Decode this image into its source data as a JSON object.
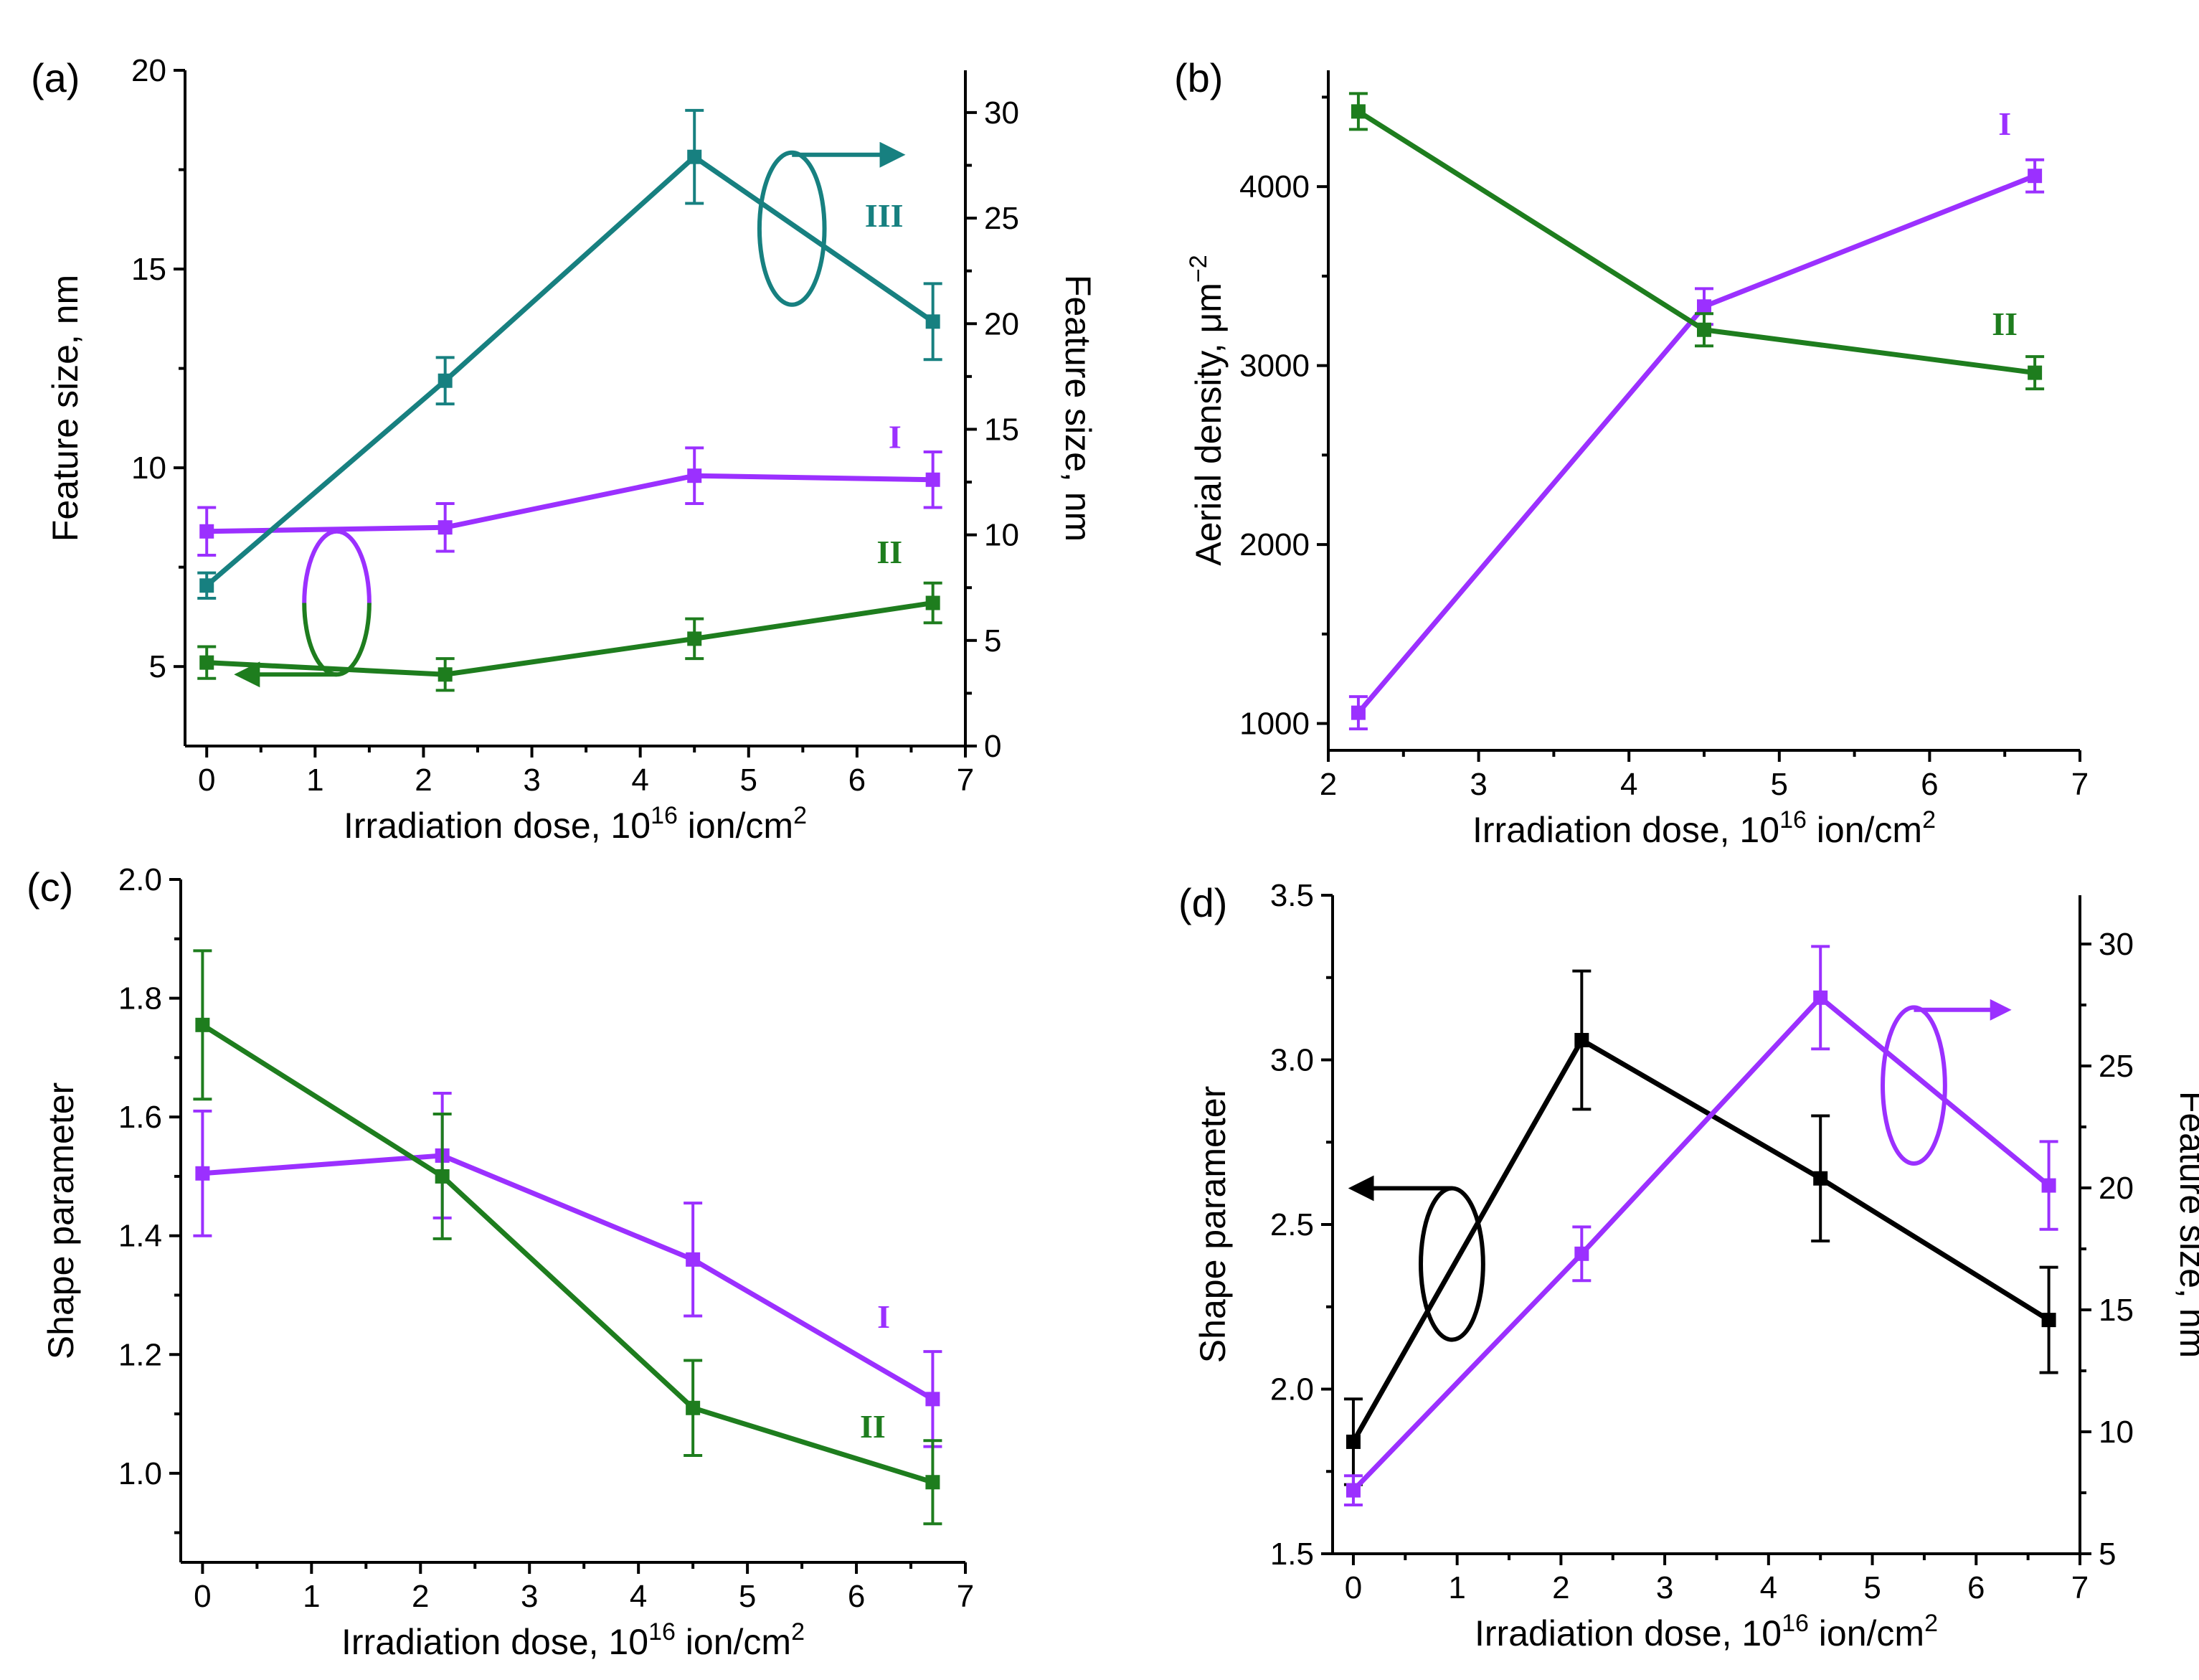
{
  "colors": {
    "purple": "#9b30ff",
    "green": "#1e7d1e",
    "teal": "#178080",
    "black": "#000000"
  },
  "chart_data": [
    {
      "id": "a",
      "type": "line",
      "panel_label": "(a)",
      "xlabel": "Irradiation dose, 10",
      "xlabel_sup": "16",
      "xlabel_tail": " ion/cm",
      "xlabel_tail_sup": "2",
      "ylabel": "Feature size, nm",
      "ylabel_right": "Feature size, nm",
      "xlim": [
        -0.2,
        7
      ],
      "ylim": [
        3,
        20
      ],
      "ylim_right": [
        0,
        32
      ],
      "xticks": [
        0,
        1,
        2,
        3,
        4,
        5,
        6,
        7
      ],
      "yticks": [
        5,
        10,
        15,
        20
      ],
      "yticks_right": [
        0,
        5,
        10,
        15,
        20,
        25,
        30
      ],
      "series": [
        {
          "name": "I",
          "color": "purple",
          "axis": "left",
          "x": [
            0,
            2.2,
            4.5,
            6.7
          ],
          "y": [
            8.4,
            8.5,
            9.8,
            9.7
          ],
          "err": [
            0.6,
            0.6,
            0.7,
            0.7
          ],
          "label_at": [
            6.35,
            10.5
          ]
        },
        {
          "name": "II",
          "color": "green",
          "axis": "left",
          "x": [
            0,
            2.2,
            4.5,
            6.7
          ],
          "y": [
            5.1,
            4.8,
            5.7,
            6.6
          ],
          "err": [
            0.4,
            0.4,
            0.5,
            0.5
          ],
          "label_at": [
            6.3,
            7.6
          ]
        },
        {
          "name": "III",
          "color": "teal",
          "axis": "right",
          "x": [
            0,
            2.2,
            4.5,
            6.7
          ],
          "y": [
            7.6,
            17.3,
            27.9,
            20.1
          ],
          "err": [
            0.6,
            1.1,
            2.2,
            1.8
          ],
          "label_at": [
            6.25,
            24.6
          ]
        }
      ],
      "annotations": [
        {
          "kind": "ellipse-arrow",
          "color": "teal",
          "center": [
            5.4,
            24.5
          ],
          "rx": 0.3,
          "ry": 3.6,
          "axis": "right",
          "arrow_from": [
            5.4,
            28
          ],
          "arrow_to": [
            6.4,
            28
          ],
          "arrow_dir": "right"
        },
        {
          "kind": "ellipse-arrow",
          "color": "purple-green",
          "center": [
            1.2,
            6.6
          ],
          "rx": 0.3,
          "ry": 1.8,
          "axis": "left",
          "arrow_from": [
            1.2,
            4.8
          ],
          "arrow_to": [
            0.3,
            4.8
          ],
          "arrow_dir": "left"
        }
      ]
    },
    {
      "id": "b",
      "type": "line",
      "panel_label": "(b)",
      "xlabel": "Irradiation dose, 10",
      "xlabel_sup": "16",
      "xlabel_tail": " ion/cm",
      "xlabel_tail_sup": "2",
      "ylabel": "Aerial density, μm",
      "ylabel_sup": "−2",
      "xlim": [
        2,
        7
      ],
      "ylim": [
        850,
        4650
      ],
      "xticks": [
        2,
        3,
        4,
        5,
        6,
        7
      ],
      "yticks": [
        1000,
        2000,
        3000,
        4000
      ],
      "series": [
        {
          "name": "I",
          "color": "purple",
          "axis": "left",
          "x": [
            2.2,
            4.5,
            6.7
          ],
          "y": [
            1060,
            3330,
            4060
          ],
          "err": [
            90,
            100,
            90
          ],
          "label_at": [
            6.5,
            4290
          ]
        },
        {
          "name": "II",
          "color": "green",
          "axis": "left",
          "x": [
            2.2,
            4.5,
            6.7
          ],
          "y": [
            4420,
            3200,
            2960
          ],
          "err": [
            100,
            90,
            90
          ],
          "label_at": [
            6.5,
            3170
          ]
        }
      ],
      "annotations": []
    },
    {
      "id": "c",
      "type": "line",
      "panel_label": "(c)",
      "xlabel": "Irradiation dose, 10",
      "xlabel_sup": "16",
      "xlabel_tail": " ion/cm",
      "xlabel_tail_sup": "2",
      "ylabel": "Shape parameter",
      "xlim": [
        -0.2,
        7
      ],
      "ylim": [
        0.85,
        2.0
      ],
      "xticks": [
        0,
        1,
        2,
        3,
        4,
        5,
        6,
        7
      ],
      "yticks": [
        1.0,
        1.2,
        1.4,
        1.6,
        1.8,
        2.0
      ],
      "series": [
        {
          "name": "I",
          "color": "purple",
          "axis": "left",
          "x": [
            0,
            2.2,
            4.5,
            6.7
          ],
          "y": [
            1.505,
            1.535,
            1.36,
            1.125
          ],
          "err": [
            0.105,
            0.105,
            0.095,
            0.08
          ],
          "label_at": [
            6.25,
            1.245
          ]
        },
        {
          "name": "II",
          "color": "green",
          "axis": "left",
          "x": [
            0,
            2.2,
            4.5,
            6.7
          ],
          "y": [
            1.755,
            1.5,
            1.11,
            0.985
          ],
          "err": [
            0.125,
            0.105,
            0.08,
            0.07
          ],
          "label_at": [
            6.15,
            1.06
          ]
        }
      ],
      "annotations": []
    },
    {
      "id": "d",
      "type": "line",
      "panel_label": "(d)",
      "xlabel": "Irradiation dose, 10",
      "xlabel_sup": "16",
      "xlabel_tail": " ion/cm",
      "xlabel_tail_sup": "2",
      "ylabel": "Shape parameter",
      "ylabel_right": "Feature size, nm",
      "xlim": [
        -0.2,
        7
      ],
      "ylim": [
        1.5,
        3.5
      ],
      "ylim_right": [
        5,
        32
      ],
      "xticks": [
        0,
        1,
        2,
        3,
        4,
        5,
        6,
        7
      ],
      "yticks": [
        1.5,
        2.0,
        2.5,
        3.0,
        3.5
      ],
      "yticks_right": [
        5,
        10,
        15,
        20,
        25,
        30
      ],
      "series": [
        {
          "name": "shape",
          "color": "black",
          "axis": "left",
          "x": [
            0,
            2.2,
            4.5,
            6.7
          ],
          "y": [
            1.84,
            3.06,
            2.64,
            2.21
          ],
          "err": [
            0.13,
            0.21,
            0.19,
            0.16
          ]
        },
        {
          "name": "size",
          "color": "purple",
          "axis": "right",
          "x": [
            0,
            2.2,
            4.5,
            6.7
          ],
          "y": [
            7.6,
            17.3,
            27.8,
            20.1
          ],
          "err": [
            0.6,
            1.1,
            2.1,
            1.8
          ]
        }
      ],
      "annotations": [
        {
          "kind": "ellipse-arrow",
          "color": "purple",
          "center": [
            5.4,
            24.2
          ],
          "rx": 0.3,
          "ry": 3.2,
          "axis": "right",
          "arrow_from": [
            5.4,
            27.3
          ],
          "arrow_to": [
            6.3,
            27.3
          ],
          "arrow_dir": "right"
        },
        {
          "kind": "ellipse-arrow",
          "color": "black",
          "center": [
            0.95,
            2.38
          ],
          "rx": 0.3,
          "ry": 0.23,
          "axis": "left",
          "arrow_from": [
            0.95,
            2.61
          ],
          "arrow_to": [
            0.0,
            2.61
          ],
          "arrow_dir": "left"
        }
      ]
    }
  ]
}
